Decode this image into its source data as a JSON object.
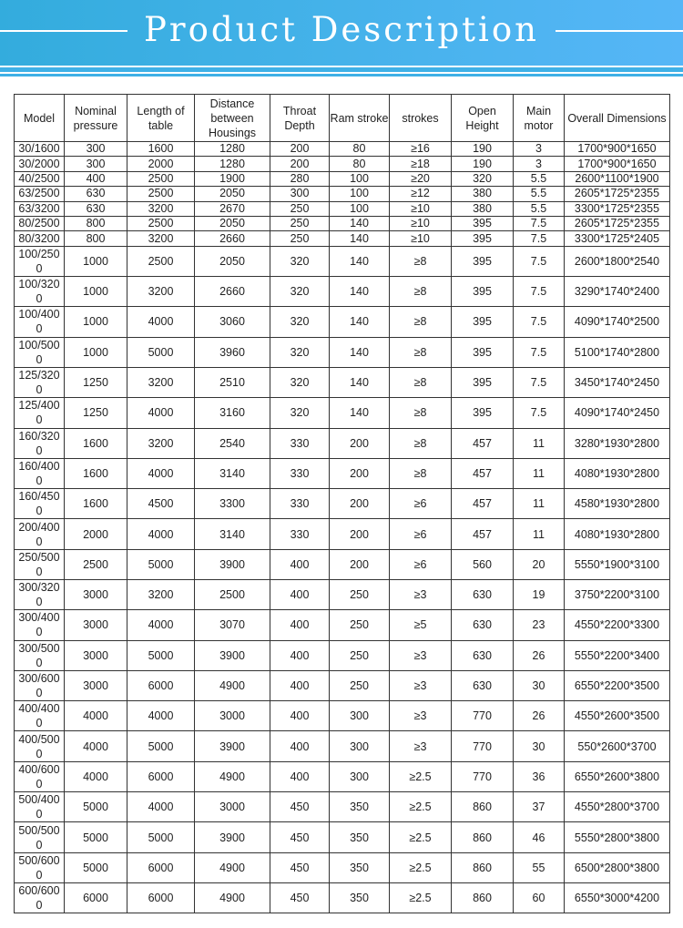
{
  "header": {
    "title": "Product Description"
  },
  "table": {
    "columns": [
      "Model",
      "Nominal pressure",
      "Length of table",
      "Distance between Housings",
      "Throat Depth",
      "Ram stroke",
      "strokes",
      "Open Height",
      "Main motor",
      "Overall Dimensions"
    ],
    "rows": [
      [
        "30/1600",
        "300",
        "1600",
        "1280",
        "200",
        "80",
        "≥16",
        "190",
        "3",
        "1700*900*1650"
      ],
      [
        "30/2000",
        "300",
        "2000",
        "1280",
        "200",
        "80",
        "≥18",
        "190",
        "3",
        "1700*900*1650"
      ],
      [
        "40/2500",
        "400",
        "2500",
        "1900",
        "280",
        "100",
        "≥20",
        "320",
        "5.5",
        "2600*1100*1900"
      ],
      [
        "63/2500",
        "630",
        "2500",
        "2050",
        "300",
        "100",
        "≥12",
        "380",
        "5.5",
        "2605*1725*2355"
      ],
      [
        "63/3200",
        "630",
        "3200",
        "2670",
        "250",
        "100",
        "≥10",
        "380",
        "5.5",
        "3300*1725*2355"
      ],
      [
        "80/2500",
        "800",
        "2500",
        "2050",
        "250",
        "140",
        "≥10",
        "395",
        "7.5",
        "2605*1725*2355"
      ],
      [
        "80/3200",
        "800",
        "3200",
        "2660",
        "250",
        "140",
        "≥10",
        "395",
        "7.5",
        "3300*1725*2405"
      ],
      [
        "100/2500",
        "1000",
        "2500",
        "2050",
        "320",
        "140",
        "≥8",
        "395",
        "7.5",
        "2600*1800*2540"
      ],
      [
        "100/3200",
        "1000",
        "3200",
        "2660",
        "320",
        "140",
        "≥8",
        "395",
        "7.5",
        "3290*1740*2400"
      ],
      [
        "100/4000",
        "1000",
        "4000",
        "3060",
        "320",
        "140",
        "≥8",
        "395",
        "7.5",
        "4090*1740*2500"
      ],
      [
        "100/5000",
        "1000",
        "5000",
        "3960",
        "320",
        "140",
        "≥8",
        "395",
        "7.5",
        "5100*1740*2800"
      ],
      [
        "125/3200",
        "1250",
        "3200",
        "2510",
        "320",
        "140",
        "≥8",
        "395",
        "7.5",
        "3450*1740*2450"
      ],
      [
        "125/4000",
        "1250",
        "4000",
        "3160",
        "320",
        "140",
        "≥8",
        "395",
        "7.5",
        "4090*1740*2450"
      ],
      [
        "160/3200",
        "1600",
        "3200",
        "2540",
        "330",
        "200",
        "≥8",
        "457",
        "11",
        "3280*1930*2800"
      ],
      [
        "160/4000",
        "1600",
        "4000",
        "3140",
        "330",
        "200",
        "≥8",
        "457",
        "11",
        "4080*1930*2800"
      ],
      [
        "160/4500",
        "1600",
        "4500",
        "3300",
        "330",
        "200",
        "≥6",
        "457",
        "11",
        "4580*1930*2800"
      ],
      [
        "200/4000",
        "2000",
        "4000",
        "3140",
        "330",
        "200",
        "≥6",
        "457",
        "11",
        "4080*1930*2800"
      ],
      [
        "250/5000",
        "2500",
        "5000",
        "3900",
        "400",
        "200",
        "≥6",
        "560",
        "20",
        "5550*1900*3100"
      ],
      [
        "300/3200",
        "3000",
        "3200",
        "2500",
        "400",
        "250",
        "≥3",
        "630",
        "19",
        "3750*2200*3100"
      ],
      [
        "300/4000",
        "3000",
        "4000",
        "3070",
        "400",
        "250",
        "≥5",
        "630",
        "23",
        "4550*2200*3300"
      ],
      [
        "300/5000",
        "3000",
        "5000",
        "3900",
        "400",
        "250",
        "≥3",
        "630",
        "26",
        "5550*2200*3400"
      ],
      [
        "300/6000",
        "3000",
        "6000",
        "4900",
        "400",
        "250",
        "≥3",
        "630",
        "30",
        "6550*2200*3500"
      ],
      [
        "400/4000",
        "4000",
        "4000",
        "3000",
        "400",
        "300",
        "≥3",
        "770",
        "26",
        "4550*2600*3500"
      ],
      [
        "400/5000",
        "4000",
        "5000",
        "3900",
        "400",
        "300",
        "≥3",
        "770",
        "30",
        "550*2600*3700"
      ],
      [
        "400/6000",
        "4000",
        "6000",
        "4900",
        "400",
        "300",
        "≥2.5",
        "770",
        "36",
        "6550*2600*3800"
      ],
      [
        "500/4000",
        "5000",
        "4000",
        "3000",
        "450",
        "350",
        "≥2.5",
        "860",
        "37",
        "4550*2800*3700"
      ],
      [
        "500/5000",
        "5000",
        "5000",
        "3900",
        "450",
        "350",
        "≥2.5",
        "860",
        "46",
        "5550*2800*3800"
      ],
      [
        "500/6000",
        "5000",
        "6000",
        "4900",
        "450",
        "350",
        "≥2.5",
        "860",
        "55",
        "6500*2800*3800"
      ],
      [
        "600/6000",
        "6000",
        "6000",
        "4900",
        "450",
        "350",
        "≥2.5",
        "860",
        "60",
        "6550*3000*4200"
      ]
    ]
  }
}
